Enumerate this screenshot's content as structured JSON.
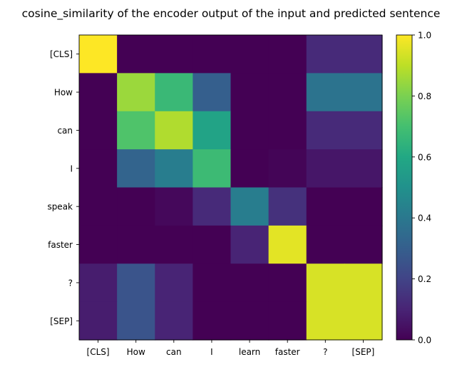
{
  "chart_data": {
    "type": "heatmap",
    "title": "cosine_similarity of the encoder output of the input and predicted sentence",
    "x_categories": [
      "[CLS]",
      "How",
      "can",
      "I",
      "learn",
      "faster",
      "?",
      "[SEP]"
    ],
    "y_categories": [
      "[CLS]",
      "How",
      "can",
      "I",
      "speak",
      "faster",
      "?",
      "[SEP]"
    ],
    "values": [
      [
        1.0,
        0.0,
        0.0,
        0.0,
        0.0,
        0.0,
        0.12,
        0.12
      ],
      [
        0.0,
        0.85,
        0.67,
        0.3,
        0.0,
        0.0,
        0.38,
        0.38
      ],
      [
        0.0,
        0.72,
        0.88,
        0.58,
        0.0,
        0.0,
        0.12,
        0.12
      ],
      [
        0.0,
        0.32,
        0.42,
        0.68,
        0.0,
        0.01,
        0.06,
        0.06
      ],
      [
        0.0,
        0.0,
        0.02,
        0.12,
        0.42,
        0.14,
        0.0,
        0.0
      ],
      [
        0.0,
        0.0,
        0.0,
        0.0,
        0.1,
        0.96,
        0.0,
        0.0
      ],
      [
        0.08,
        0.26,
        0.1,
        0.0,
        0.0,
        0.0,
        0.94,
        0.94
      ],
      [
        0.08,
        0.26,
        0.1,
        0.0,
        0.0,
        0.0,
        0.94,
        0.94
      ]
    ],
    "colormap": "viridis",
    "vmin": 0.0,
    "vmax": 1.0,
    "colorbar_ticks": [
      "0.0",
      "0.2",
      "0.4",
      "0.6",
      "0.8",
      "1.0"
    ],
    "grid": false
  }
}
